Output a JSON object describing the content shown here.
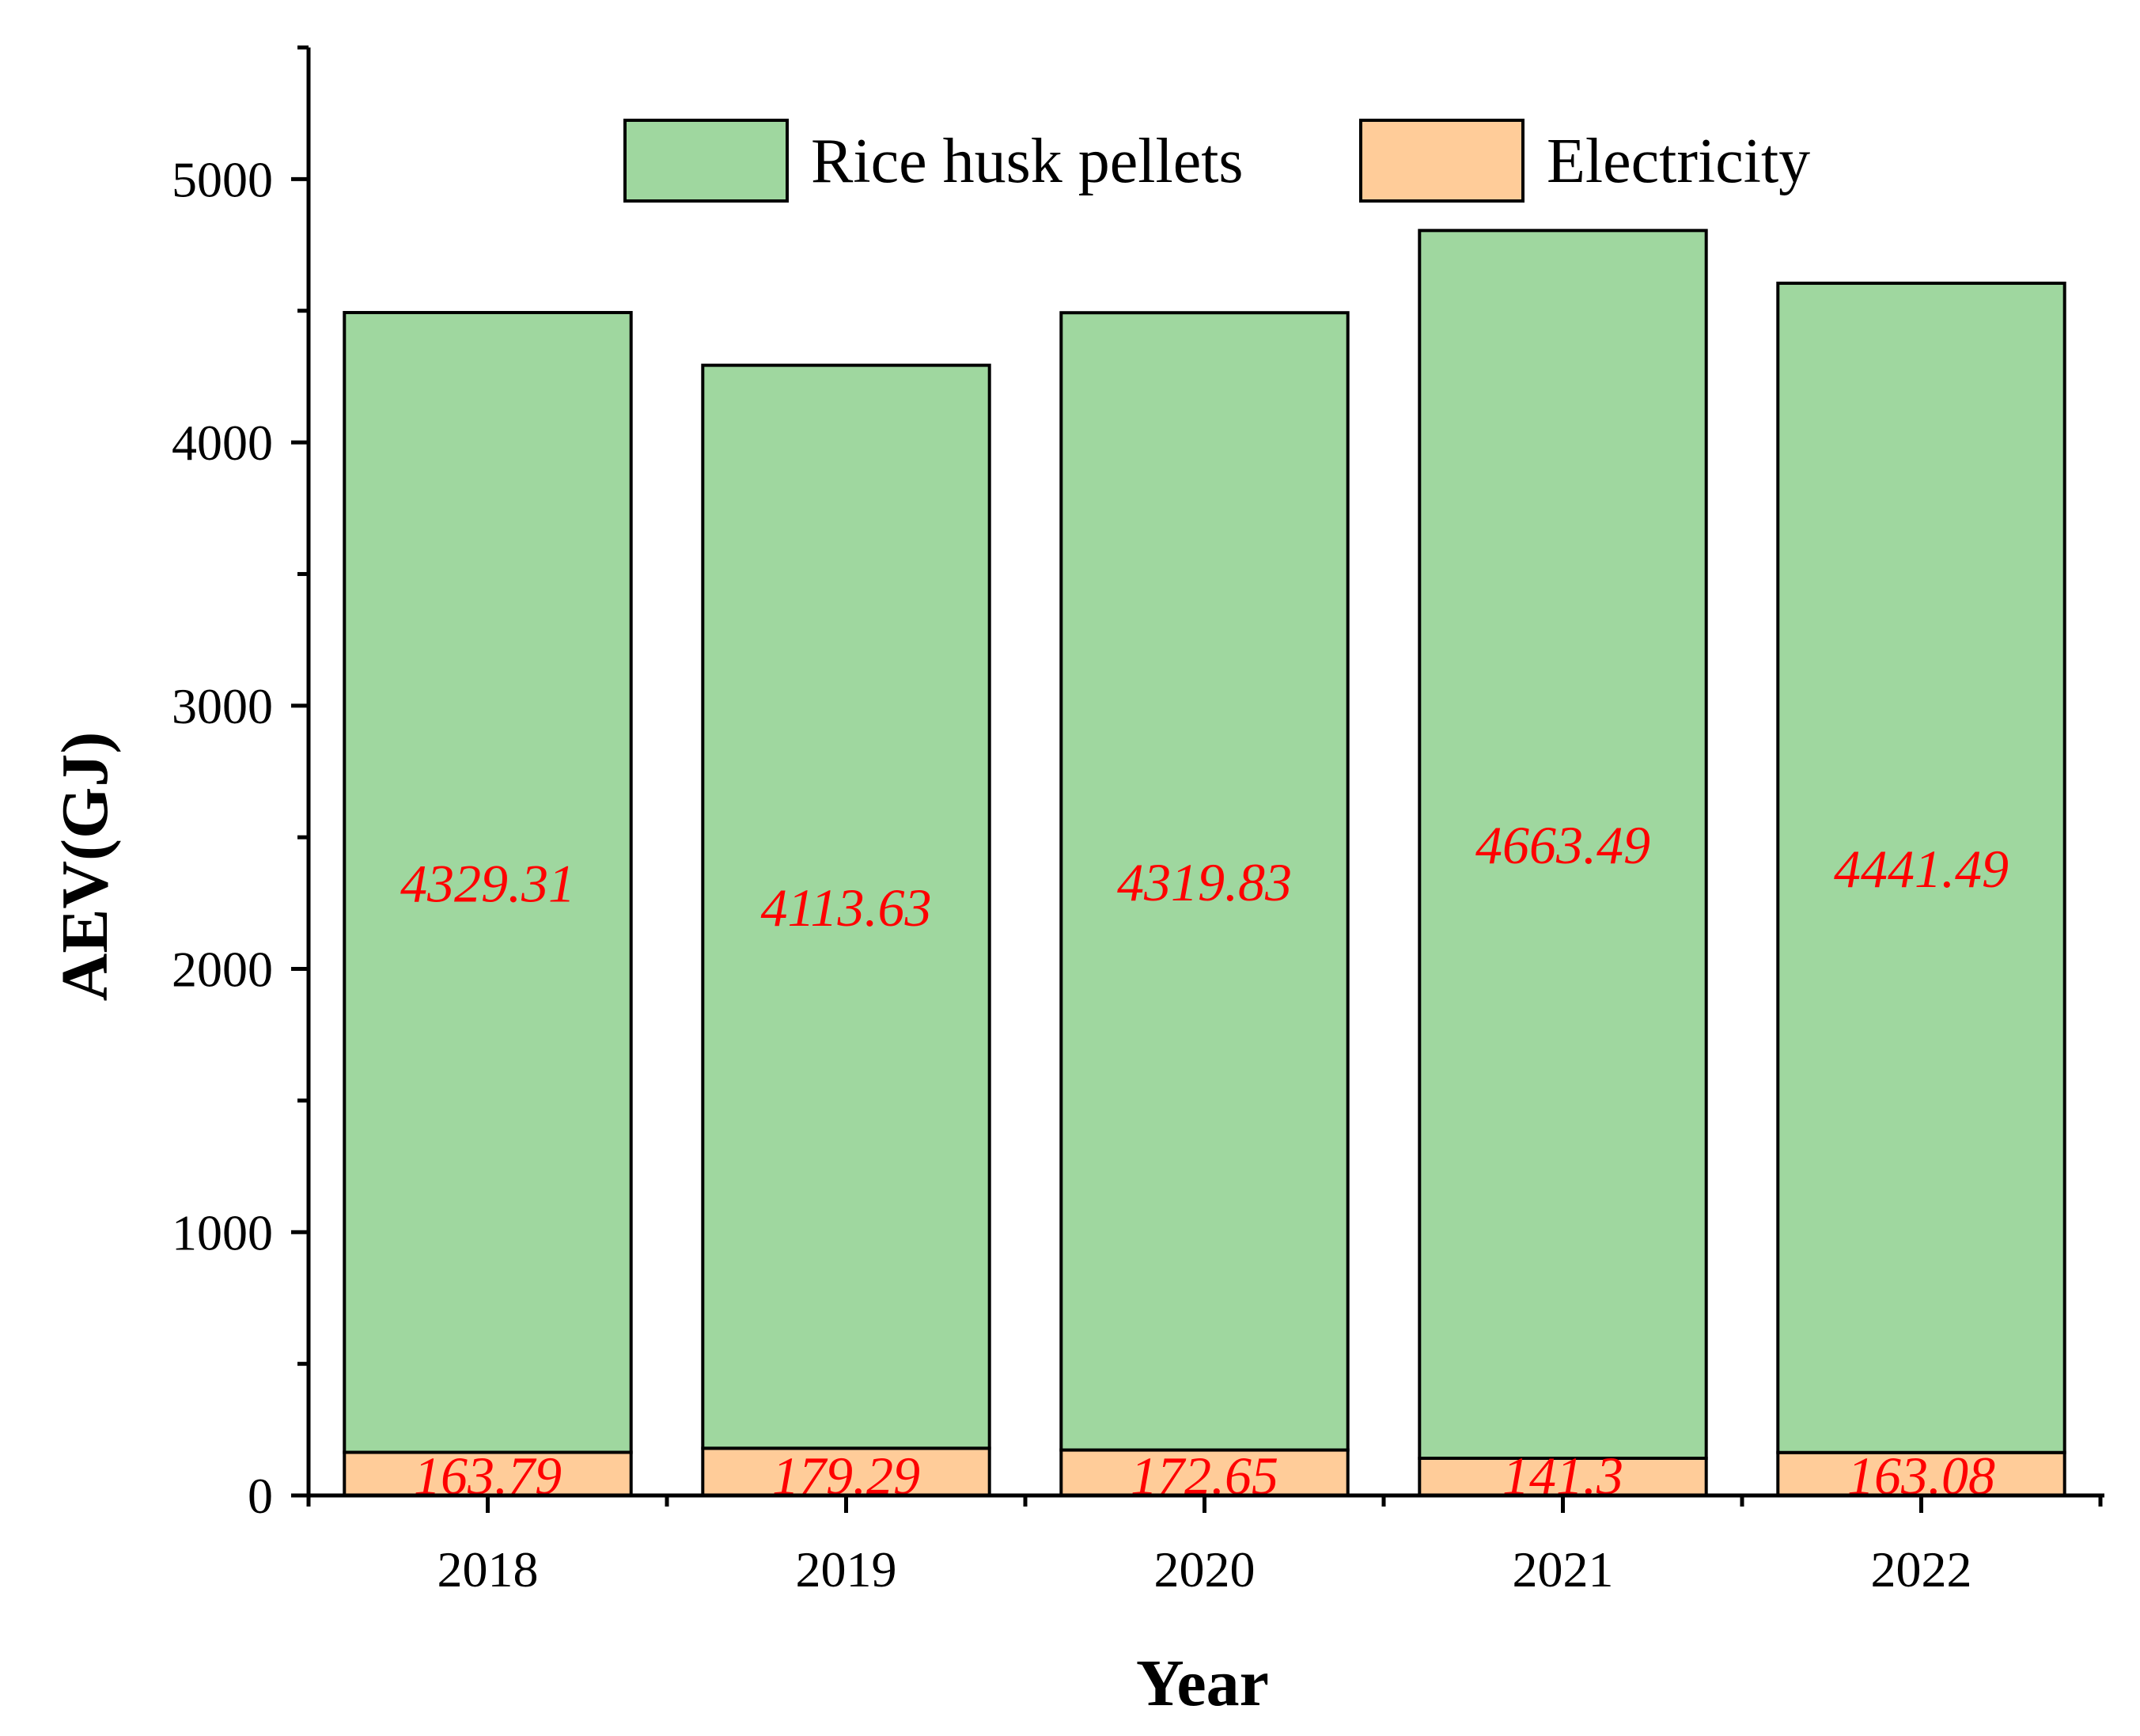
{
  "chart_data": {
    "type": "bar",
    "stacked": true,
    "categories": [
      "2018",
      "2019",
      "2020",
      "2021",
      "2022"
    ],
    "series": [
      {
        "name": "Electricity",
        "values": [
          163.79,
          179.29,
          172.65,
          141.3,
          163.08
        ],
        "color": "#FFCC99"
      },
      {
        "name": "Rice husk pellets",
        "values": [
          4329.31,
          4113.63,
          4319.83,
          4663.49,
          4441.49
        ],
        "color": "#9FD79F"
      }
    ],
    "data_labels": {
      "Electricity": [
        "163.79",
        "179.29",
        "172.65",
        "141.3",
        "163.08"
      ],
      "Rice husk pellets": [
        "4329.31",
        "4113.63",
        "4319.83",
        "4663.49",
        "4441.49"
      ]
    },
    "label_color": "#FF0000",
    "xlabel": "Year",
    "ylabel": "AEV(GJ)",
    "ylim": [
      0,
      5500
    ],
    "yticks": [
      0,
      1000,
      2000,
      3000,
      4000,
      5000
    ],
    "grid": false,
    "legend": {
      "placement": "top",
      "order": [
        "Rice husk pellets",
        "Electricity"
      ]
    }
  }
}
